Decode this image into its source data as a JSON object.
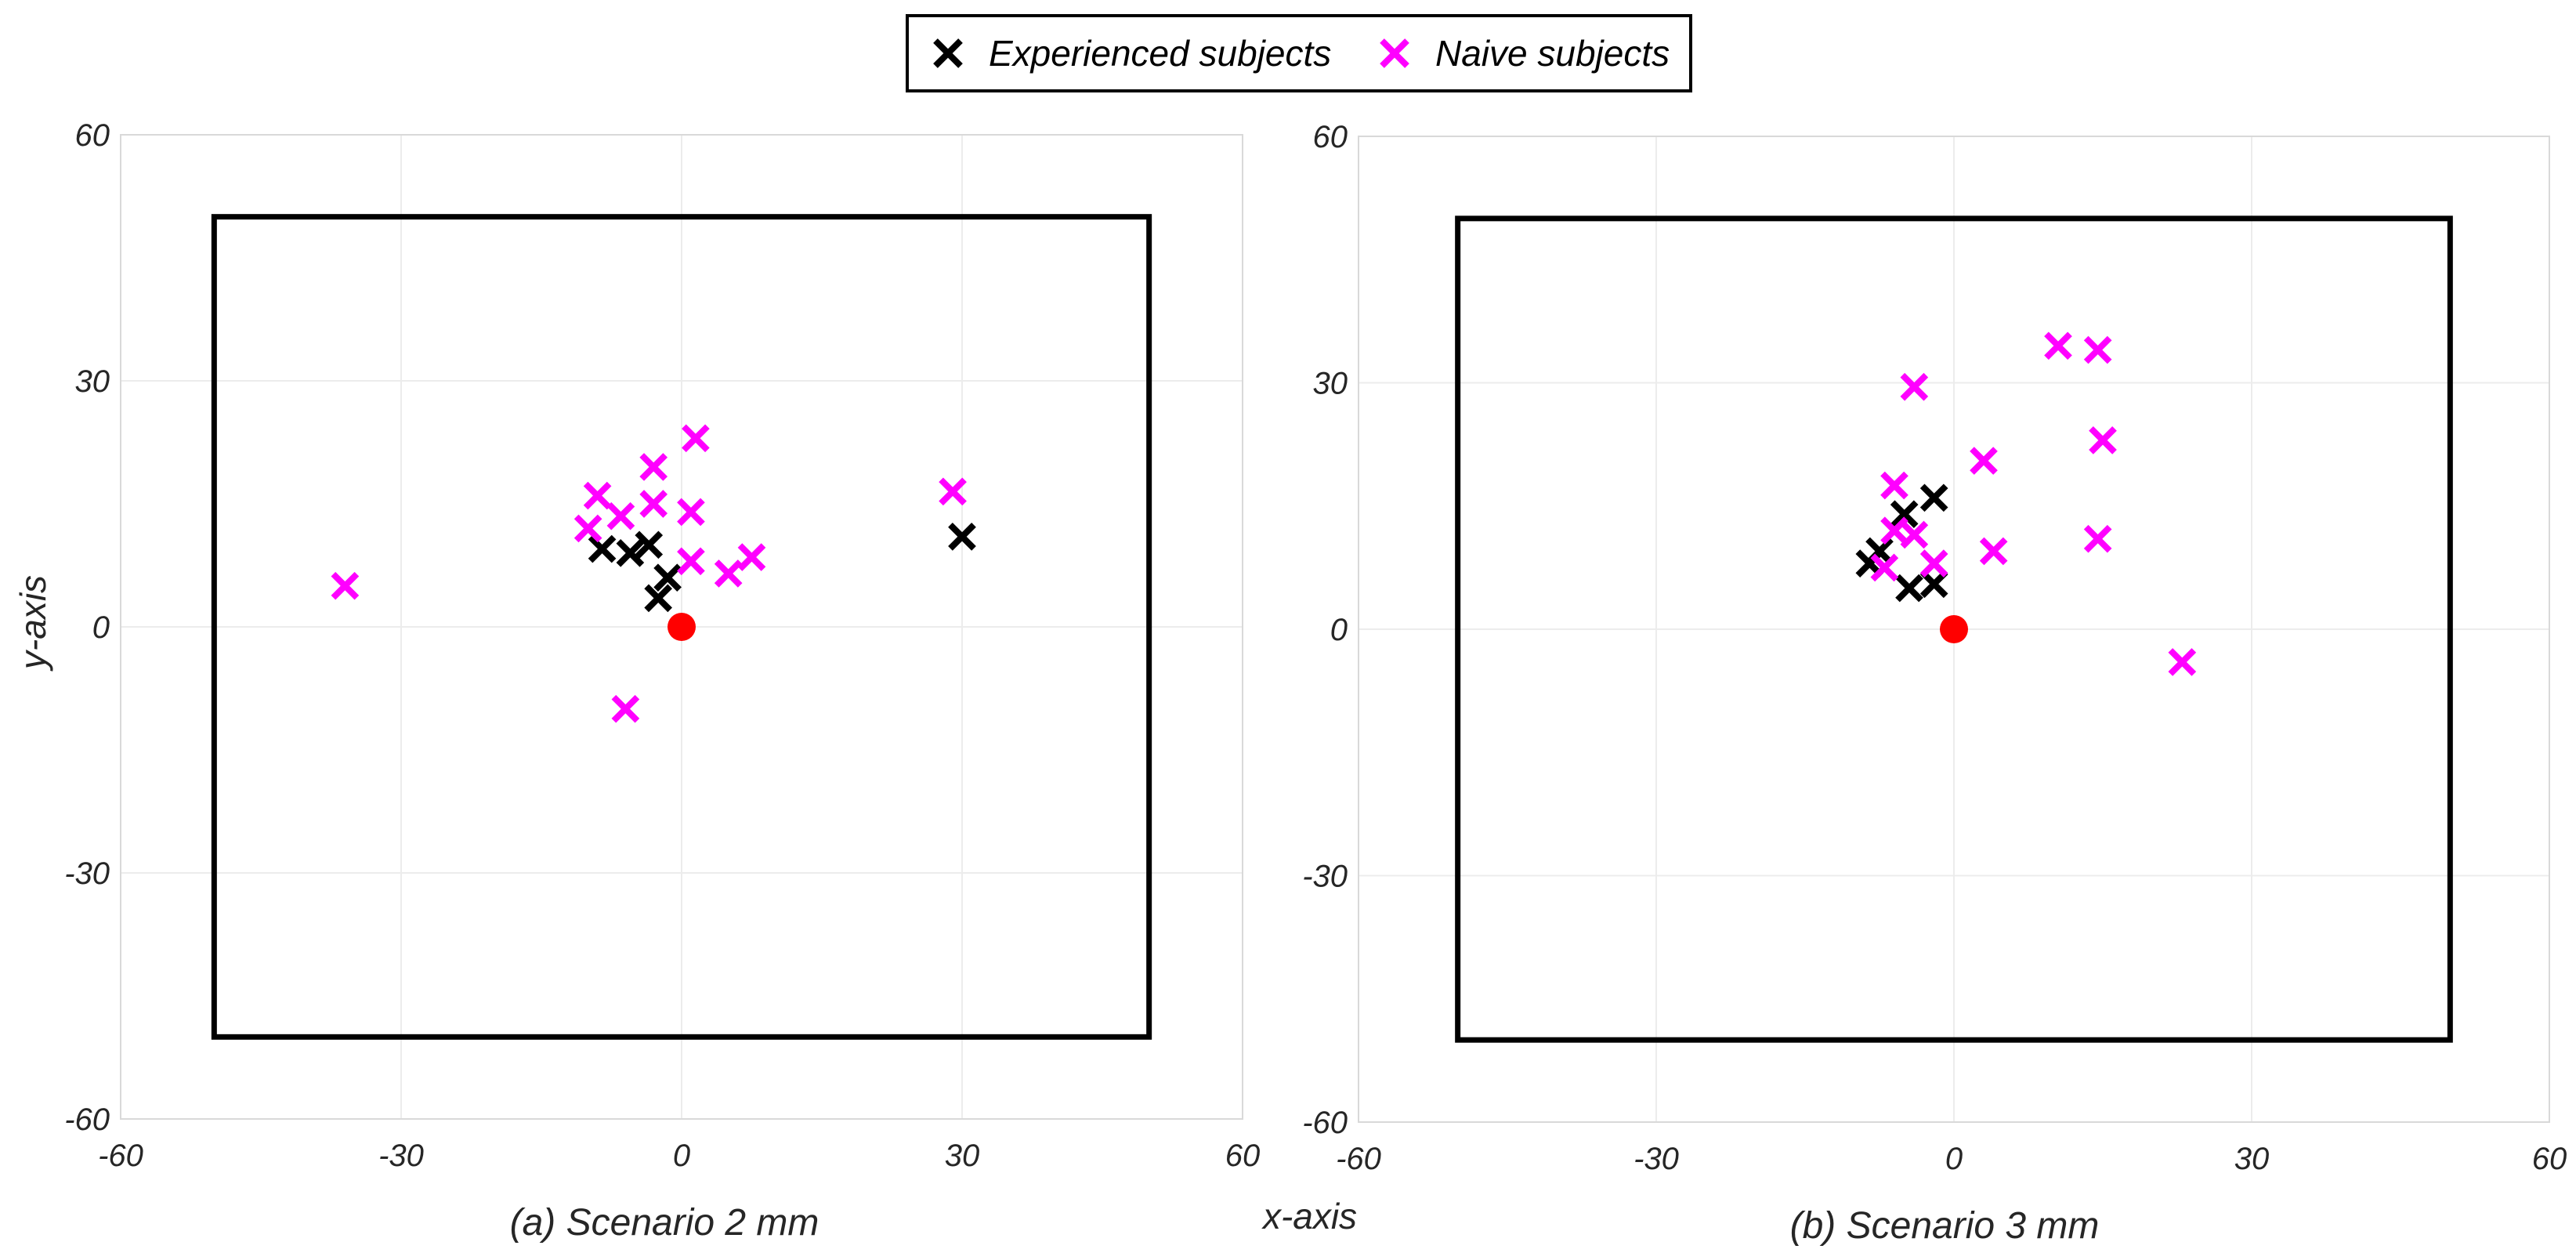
{
  "chart_data": [
    {
      "type": "scatter",
      "caption": "(a) Scenario 2 mm",
      "xlim": [
        -60,
        60
      ],
      "ylim": [
        -60,
        60
      ],
      "xticks": [
        -60,
        -30,
        0,
        30,
        60
      ],
      "yticks": [
        -60,
        -30,
        0,
        30,
        60
      ],
      "grid": true,
      "boundary_box": {
        "x": [
          -50,
          50
        ],
        "y": [
          -50,
          50
        ],
        "color": "#000000"
      },
      "target": {
        "x": 0,
        "y": 0,
        "color": "#ff0000"
      },
      "series": [
        {
          "name": "Experienced subjects",
          "color": "#000000",
          "points": [
            [
              -8.5,
              9.5
            ],
            [
              -5.5,
              9
            ],
            [
              -3.5,
              10
            ],
            [
              -1.5,
              6
            ],
            [
              -2.5,
              3.5
            ],
            [
              30,
              11
            ]
          ]
        },
        {
          "name": "Naive subjects",
          "color": "#ff00ff",
          "points": [
            [
              -36,
              5
            ],
            [
              -6,
              -10
            ],
            [
              -9,
              16
            ],
            [
              -10,
              12
            ],
            [
              -6.5,
              13.5
            ],
            [
              -3,
              19.5
            ],
            [
              -3,
              15
            ],
            [
              1.5,
              23
            ],
            [
              1,
              14
            ],
            [
              1,
              8
            ],
            [
              5,
              6.5
            ],
            [
              7.5,
              8.5
            ],
            [
              29,
              16.5
            ]
          ]
        }
      ]
    },
    {
      "type": "scatter",
      "caption": "(b) Scenario 3 mm",
      "xlim": [
        -60,
        60
      ],
      "ylim": [
        -60,
        60
      ],
      "xticks": [
        -60,
        -30,
        0,
        30,
        60
      ],
      "yticks": [
        -60,
        -30,
        0,
        30,
        60
      ],
      "grid": true,
      "boundary_box": {
        "x": [
          -50,
          50
        ],
        "y": [
          -50,
          50
        ],
        "color": "#000000"
      },
      "target": {
        "x": 0,
        "y": 0,
        "color": "#ff0000"
      },
      "series": [
        {
          "name": "Experienced subjects",
          "color": "#000000",
          "points": [
            [
              -8.5,
              8
            ],
            [
              -7.5,
              9.5
            ],
            [
              -5,
              14
            ],
            [
              -2,
              16
            ],
            [
              -4.5,
              5
            ],
            [
              -2,
              5.5
            ]
          ]
        },
        {
          "name": "Naive subjects",
          "color": "#ff00ff",
          "points": [
            [
              -6,
              17.5
            ],
            [
              -4,
              29.5
            ],
            [
              -6,
              12
            ],
            [
              -4,
              11.5
            ],
            [
              -7,
              7.5
            ],
            [
              -2,
              8
            ],
            [
              3,
              20.5
            ],
            [
              4,
              9.5
            ],
            [
              10.5,
              34.5
            ],
            [
              14.5,
              34
            ],
            [
              15,
              23
            ],
            [
              14.5,
              11
            ],
            [
              23,
              -4
            ]
          ]
        }
      ]
    }
  ],
  "shared": {
    "xlabel": "x-axis",
    "ylabel": "y-axis",
    "legend": {
      "position": "top-center",
      "entries": [
        {
          "label": "Experienced subjects",
          "color": "#000000"
        },
        {
          "label": "Naive subjects",
          "color": "#ff00ff"
        }
      ]
    }
  }
}
